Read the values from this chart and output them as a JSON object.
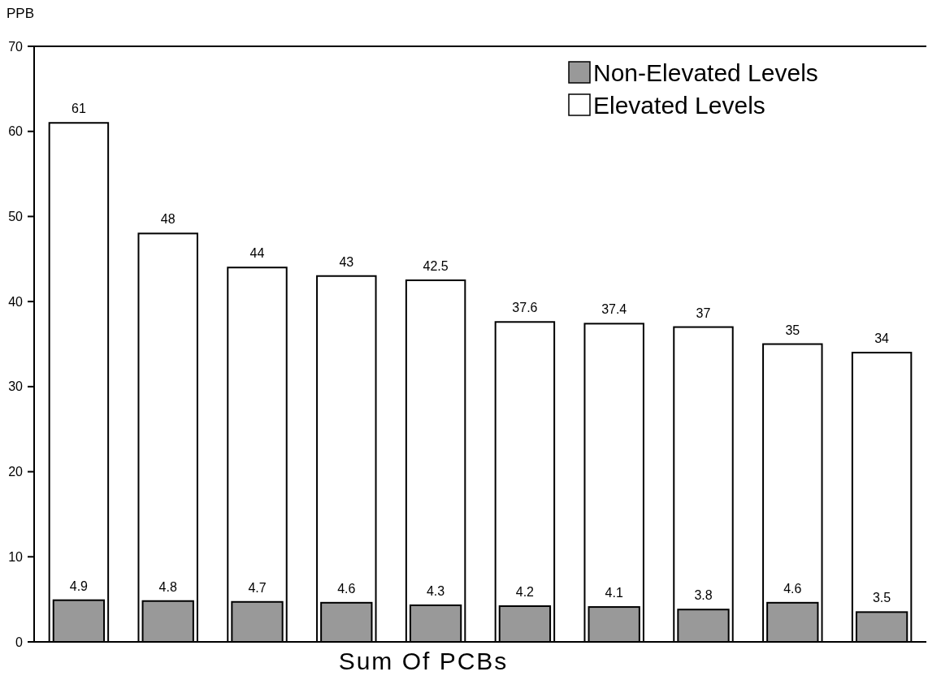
{
  "chart_data": {
    "type": "bar",
    "xlabel": "Sum Of PCBs",
    "ylabel": "PPB",
    "categories": [
      null,
      null,
      null,
      null,
      null,
      null,
      null,
      null,
      null,
      null
    ],
    "series": [
      {
        "name": "Non-Elevated Levels",
        "color": "#999999",
        "values": [
          4.9,
          4.8,
          4.7,
          4.6,
          4.3,
          4.2,
          4.1,
          3.8,
          4.6,
          3.5
        ]
      },
      {
        "name": "Elevated Levels",
        "color": "#ffffff",
        "values": [
          61,
          48,
          44,
          43,
          42.5,
          37.6,
          37.4,
          37,
          35,
          34
        ]
      }
    ],
    "ylim": [
      0,
      70
    ],
    "yticks": [
      0,
      10,
      20,
      30,
      40,
      50,
      60,
      70
    ],
    "data_labels": true,
    "legend": "top right",
    "grid": false
  }
}
